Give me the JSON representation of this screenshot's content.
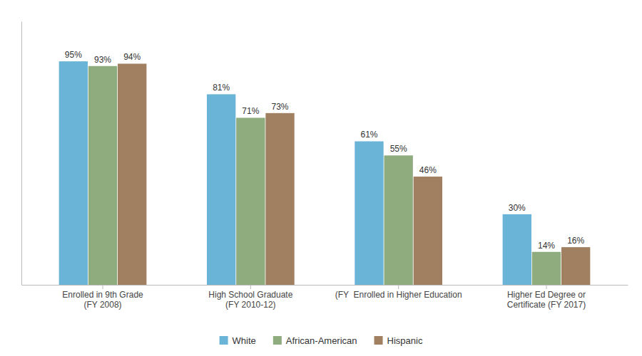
{
  "chart_data": {
    "type": "bar",
    "categories": [
      "Enrolled in 9th Grade\n(FY 2008)",
      "High School Graduate\n(FY 2010-12)",
      "(FY  Enrolled in Higher Education",
      "Higher Ed Degree or\nCertificate (FY 2017)"
    ],
    "series": [
      {
        "name": "White",
        "color": "#6ab4d8",
        "values": [
          95,
          81,
          61,
          30
        ],
        "value_labels": [
          "95%",
          "81%",
          "61%",
          "30%"
        ]
      },
      {
        "name": "African-American",
        "color": "#8fac7e",
        "values": [
          93,
          71,
          55,
          14
        ],
        "value_labels": [
          "93%",
          "71%",
          "55%",
          "14%"
        ]
      },
      {
        "name": "Hispanic",
        "color": "#a08060",
        "values": [
          94,
          73,
          46,
          16
        ],
        "value_labels": [
          "94%",
          "73%",
          "46%",
          "16%"
        ]
      }
    ],
    "ylim": [
      0,
      112
    ],
    "data_labels": true,
    "tick_labels": "x",
    "grid": false,
    "legend": "bottom"
  }
}
